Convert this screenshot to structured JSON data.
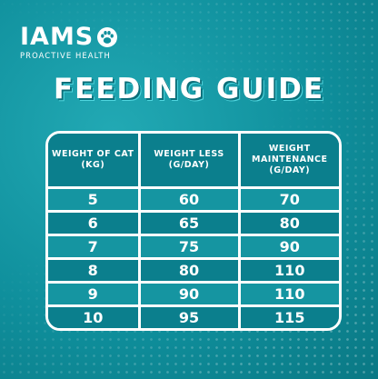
{
  "brand": {
    "name": "IAMS",
    "tagline": "PROACTIVE HEALTH",
    "icon": "paw-icon"
  },
  "title": "FEEDING GUIDE",
  "colors": {
    "background": "#1399a6",
    "table_dark": "#0b7f8d",
    "table_light": "#1595a1",
    "border": "#ffffff"
  },
  "table": {
    "headers": [
      "WEIGHT OF CAT (KG)",
      "WEIGHT LESS (G/DAY)",
      "WEIGHT MAINTENANCE (G/DAY)"
    ],
    "rows": [
      [
        "5",
        "60",
        "70"
      ],
      [
        "6",
        "65",
        "80"
      ],
      [
        "7",
        "75",
        "90"
      ],
      [
        "8",
        "80",
        "110"
      ],
      [
        "9",
        "90",
        "110"
      ],
      [
        "10",
        "95",
        "115"
      ]
    ]
  }
}
